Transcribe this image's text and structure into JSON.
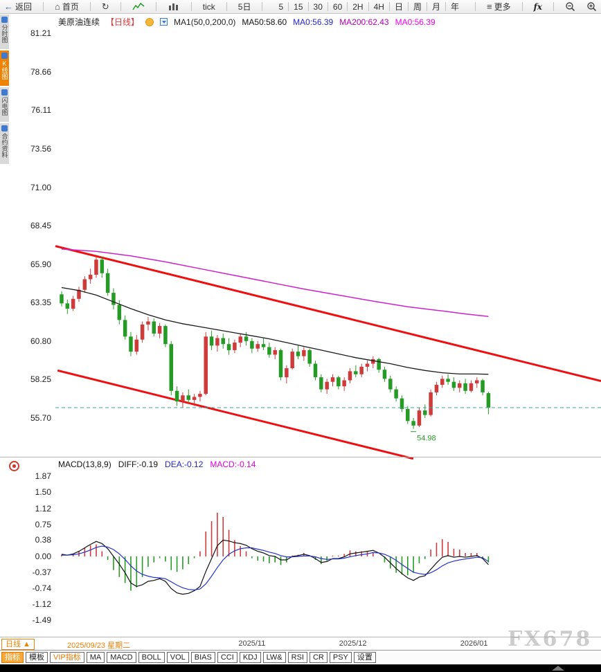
{
  "top_toolbar": {
    "back_label": "返回",
    "home_label": "首页",
    "tick_label": "tick",
    "five_day_label": "5日",
    "intervals": [
      "5",
      "15",
      "30",
      "60",
      "2H",
      "4H",
      "日",
      "周",
      "月",
      "年"
    ],
    "more_label": "更多",
    "fx_label": "fx"
  },
  "sidebar": {
    "items": [
      {
        "label": "分时图",
        "active": false
      },
      {
        "label": "K线图",
        "active": true
      },
      {
        "label": "闪电图",
        "active": false
      },
      {
        "label": "合约资料",
        "active": false
      }
    ]
  },
  "title_bar": {
    "symbol": "美原油连续",
    "period": "【日线】",
    "ma_settings": "MA1(50,0,200,0)",
    "ma50": "MA50:58.60",
    "ma0_blue": "MA0:56.39",
    "ma200": "MA200:62.43",
    "ma0_magenta": "MA0:56.39"
  },
  "macd_header": {
    "title": "MACD(13,8,9)",
    "diff": "DIFF:-0.19",
    "dea": "DEA:-0.12",
    "macd": "MACD:-0.14"
  },
  "time_axis": {
    "period_button": "日线 ▲",
    "cursor_date": "2025/09/23 星期二",
    "ticks": [
      {
        "label": "2025/11",
        "idx": 33
      },
      {
        "label": "2025/12",
        "idx": 50.5
      },
      {
        "label": "2026/01",
        "idx": 71.5
      }
    ]
  },
  "bottom_toolbar": [
    {
      "label": "指标",
      "style": "primary"
    },
    {
      "label": "模板",
      "style": "normal"
    },
    {
      "label": "VIP指标",
      "style": "vip"
    },
    {
      "label": "MA",
      "style": "normal"
    },
    {
      "label": "MACD",
      "style": "normal"
    },
    {
      "label": "BOLL",
      "style": "normal"
    },
    {
      "label": "VOL",
      "style": "normal"
    },
    {
      "label": "BIAS",
      "style": "normal"
    },
    {
      "label": "CCI",
      "style": "normal"
    },
    {
      "label": "KDJ",
      "style": "normal"
    },
    {
      "label": "LW&",
      "style": "normal"
    },
    {
      "label": "RSI",
      "style": "normal"
    },
    {
      "label": "CR",
      "style": "normal"
    },
    {
      "label": "PSY",
      "style": "normal"
    },
    {
      "label": "设置",
      "style": "normal"
    }
  ],
  "watermark": "FX678",
  "chart_data": {
    "type": "candlestick",
    "title": "美原油连续 日线",
    "main_pane": {
      "y_ticks": [
        81.21,
        78.66,
        76.11,
        73.56,
        71.0,
        68.45,
        65.9,
        63.35,
        60.8,
        58.25,
        55.7
      ],
      "last_price": 56.39,
      "ma50_current": 58.6,
      "ma200_current": 62.43,
      "low_annotation": {
        "label": "54.98",
        "candle_index": 61
      },
      "candles_ohlc": [
        [
          63.9,
          64.1,
          63.1,
          63.3
        ],
        [
          63.3,
          63.55,
          62.6,
          62.95
        ],
        [
          62.95,
          63.8,
          62.8,
          63.6
        ],
        [
          63.6,
          64.4,
          63.4,
          64.2
        ],
        [
          64.2,
          65.1,
          64.0,
          64.9
        ],
        [
          64.9,
          65.6,
          64.6,
          65.2
        ],
        [
          65.2,
          66.43,
          65.0,
          66.2
        ],
        [
          66.2,
          66.4,
          65.0,
          65.3
        ],
        [
          65.3,
          65.6,
          63.8,
          64.0
        ],
        [
          64.0,
          64.3,
          62.9,
          63.2
        ],
        [
          63.2,
          63.5,
          61.9,
          62.2
        ],
        [
          62.2,
          62.5,
          60.9,
          61.1
        ],
        [
          61.1,
          61.4,
          59.8,
          60.1
        ],
        [
          60.1,
          61.2,
          59.9,
          60.9
        ],
        [
          60.9,
          62.1,
          60.7,
          61.9
        ],
        [
          61.9,
          62.4,
          61.5,
          62.1
        ],
        [
          62.1,
          62.3,
          61.1,
          61.3
        ],
        [
          61.3,
          62.0,
          61.0,
          61.8
        ],
        [
          61.8,
          61.9,
          60.4,
          60.6
        ],
        [
          60.6,
          60.8,
          57.2,
          57.5
        ],
        [
          57.5,
          57.8,
          56.5,
          56.8
        ],
        [
          56.8,
          57.4,
          56.4,
          57.2
        ],
        [
          57.2,
          57.6,
          56.7,
          56.9
        ],
        [
          56.9,
          57.3,
          56.5,
          57.1
        ],
        [
          57.1,
          57.5,
          56.8,
          57.3
        ],
        [
          57.3,
          61.4,
          57.2,
          61.1
        ],
        [
          61.1,
          61.5,
          60.2,
          60.5
        ],
        [
          60.5,
          61.2,
          60.1,
          61.0
        ],
        [
          61.0,
          61.3,
          60.3,
          60.6
        ],
        [
          60.6,
          61.0,
          59.9,
          60.2
        ],
        [
          60.2,
          60.9,
          60.0,
          60.7
        ],
        [
          60.7,
          61.3,
          60.4,
          61.1
        ],
        [
          61.1,
          61.4,
          60.5,
          60.8
        ],
        [
          60.8,
          61.0,
          60.0,
          60.3
        ],
        [
          60.3,
          60.8,
          60.1,
          60.6
        ],
        [
          60.6,
          61.0,
          60.2,
          60.4
        ],
        [
          60.4,
          60.7,
          59.7,
          59.9
        ],
        [
          59.9,
          60.4,
          59.6,
          60.2
        ],
        [
          60.2,
          60.3,
          58.2,
          58.4
        ],
        [
          58.4,
          59.2,
          58.0,
          59.0
        ],
        [
          59.0,
          60.3,
          58.9,
          60.1
        ],
        [
          60.1,
          60.5,
          59.6,
          59.8
        ],
        [
          59.8,
          60.4,
          59.5,
          60.2
        ],
        [
          60.2,
          60.3,
          59.1,
          59.3
        ],
        [
          59.3,
          59.5,
          58.2,
          58.4
        ],
        [
          58.4,
          58.6,
          57.4,
          57.6
        ],
        [
          57.6,
          58.3,
          57.3,
          58.1
        ],
        [
          58.1,
          58.6,
          57.8,
          58.4
        ],
        [
          58.4,
          58.5,
          57.6,
          57.8
        ],
        [
          57.8,
          58.4,
          57.5,
          58.2
        ],
        [
          58.2,
          59.0,
          58.0,
          58.8
        ],
        [
          58.8,
          59.2,
          58.4,
          58.6
        ],
        [
          58.6,
          59.3,
          58.4,
          59.1
        ],
        [
          59.1,
          59.5,
          58.8,
          59.3
        ],
        [
          59.3,
          59.8,
          59.0,
          59.6
        ],
        [
          59.6,
          59.7,
          58.7,
          58.9
        ],
        [
          58.9,
          59.1,
          58.1,
          58.3
        ],
        [
          58.3,
          58.5,
          57.4,
          57.6
        ],
        [
          57.6,
          57.8,
          56.8,
          57.0
        ],
        [
          57.0,
          57.2,
          56.1,
          56.3
        ],
        [
          56.3,
          56.5,
          55.3,
          55.5
        ],
        [
          55.5,
          55.7,
          54.98,
          55.2
        ],
        [
          55.2,
          56.4,
          55.1,
          56.2
        ],
        [
          56.2,
          56.6,
          55.7,
          55.9
        ],
        [
          55.9,
          57.6,
          55.8,
          57.4
        ],
        [
          57.4,
          58.1,
          57.2,
          57.9
        ],
        [
          57.9,
          58.5,
          57.7,
          58.3
        ],
        [
          58.3,
          58.6,
          57.9,
          58.1
        ],
        [
          58.1,
          58.4,
          57.5,
          57.7
        ],
        [
          57.7,
          58.2,
          57.4,
          58.0
        ],
        [
          58.0,
          58.3,
          57.3,
          57.5
        ],
        [
          57.5,
          58.2,
          57.4,
          58.0
        ],
        [
          58.0,
          58.4,
          57.7,
          58.2
        ],
        [
          58.2,
          58.3,
          57.2,
          57.4
        ],
        [
          57.35,
          57.45,
          55.95,
          56.39
        ]
      ],
      "ma50_points": [
        [
          0,
          64.35
        ],
        [
          3,
          64.15
        ],
        [
          6,
          63.85
        ],
        [
          9,
          63.4
        ],
        [
          12,
          62.95
        ],
        [
          15,
          62.55
        ],
        [
          18,
          62.2
        ],
        [
          21,
          61.95
        ],
        [
          24,
          61.75
        ],
        [
          27,
          61.55
        ],
        [
          30,
          61.35
        ],
        [
          33,
          61.15
        ],
        [
          36,
          60.95
        ],
        [
          39,
          60.7
        ],
        [
          42,
          60.45
        ],
        [
          45,
          60.2
        ],
        [
          48,
          59.95
        ],
        [
          51,
          59.7
        ],
        [
          54,
          59.5
        ],
        [
          57,
          59.3
        ],
        [
          60,
          59.05
        ],
        [
          63,
          58.85
        ],
        [
          66,
          58.7
        ],
        [
          69,
          58.62
        ],
        [
          72,
          58.62
        ],
        [
          74,
          58.6
        ]
      ],
      "ma200_points": [
        [
          0,
          66.9
        ],
        [
          6,
          66.75
        ],
        [
          12,
          66.45
        ],
        [
          18,
          66.05
        ],
        [
          24,
          65.6
        ],
        [
          30,
          65.15
        ],
        [
          36,
          64.7
        ],
        [
          42,
          64.25
        ],
        [
          48,
          63.85
        ],
        [
          54,
          63.45
        ],
        [
          60,
          63.08
        ],
        [
          66,
          62.8
        ],
        [
          70,
          62.6
        ],
        [
          74,
          62.43
        ]
      ],
      "channel_lines": [
        {
          "x1_frac": 0.0,
          "price1": 67.1,
          "x2_frac": 1.0,
          "price2": 58.15
        },
        {
          "x1_frac": 0.004,
          "price1": 58.85,
          "x2_frac": 0.656,
          "price2": 53.0
        }
      ],
      "colors": {
        "up": "#cf3b3b",
        "down": "#259b25",
        "ma50": "#1a1a1a",
        "ma200": "#cc22cc",
        "channel": "#ee1010",
        "last_price": "#3fa39a"
      }
    },
    "macd_pane": {
      "y_ticks": [
        1.87,
        1.5,
        1.12,
        0.75,
        0.38,
        0.0,
        -0.37,
        -0.74,
        -1.12,
        -1.49
      ],
      "histogram_rule": "2*(diff-dea)",
      "diff": [
        0.05,
        0.03,
        0.06,
        0.12,
        0.2,
        0.28,
        0.35,
        0.3,
        0.18,
        0.0,
        -0.18,
        -0.38,
        -0.62,
        -0.7,
        -0.66,
        -0.58,
        -0.56,
        -0.52,
        -0.58,
        -0.75,
        -0.85,
        -0.88,
        -0.86,
        -0.8,
        -0.7,
        -0.35,
        -0.05,
        0.25,
        0.38,
        0.36,
        0.32,
        0.3,
        0.26,
        0.18,
        0.12,
        0.08,
        0.02,
        0.0,
        -0.08,
        -0.08,
        0.0,
        0.02,
        0.05,
        0.02,
        -0.05,
        -0.14,
        -0.12,
        -0.05,
        -0.05,
        -0.01,
        0.06,
        0.08,
        0.1,
        0.12,
        0.14,
        0.08,
        -0.02,
        -0.15,
        -0.28,
        -0.4,
        -0.5,
        -0.56,
        -0.48,
        -0.45,
        -0.3,
        -0.15,
        -0.02,
        0.02,
        -0.02,
        0.0,
        -0.02,
        0.0,
        0.02,
        -0.05,
        -0.19
      ],
      "dea": [
        0.03,
        0.03,
        0.04,
        0.06,
        0.1,
        0.15,
        0.21,
        0.24,
        0.22,
        0.16,
        0.06,
        -0.07,
        -0.22,
        -0.34,
        -0.42,
        -0.46,
        -0.49,
        -0.5,
        -0.52,
        -0.59,
        -0.67,
        -0.73,
        -0.77,
        -0.78,
        -0.76,
        -0.64,
        -0.46,
        -0.26,
        -0.08,
        0.05,
        0.13,
        0.18,
        0.2,
        0.2,
        0.17,
        0.14,
        0.1,
        0.07,
        0.02,
        -0.01,
        -0.01,
        0.0,
        0.01,
        0.01,
        -0.01,
        -0.05,
        -0.07,
        -0.06,
        -0.06,
        -0.04,
        -0.01,
        0.02,
        0.04,
        0.06,
        0.09,
        0.08,
        0.05,
        -0.01,
        -0.09,
        -0.19,
        -0.28,
        -0.37,
        -0.4,
        -0.42,
        -0.38,
        -0.31,
        -0.22,
        -0.15,
        -0.11,
        -0.08,
        -0.06,
        -0.04,
        -0.02,
        -0.03,
        -0.12
      ],
      "colors": {
        "diff": "#111111",
        "dea": "#2233cc",
        "positive": "#cf3b3b",
        "negative": "#259b25"
      }
    }
  }
}
